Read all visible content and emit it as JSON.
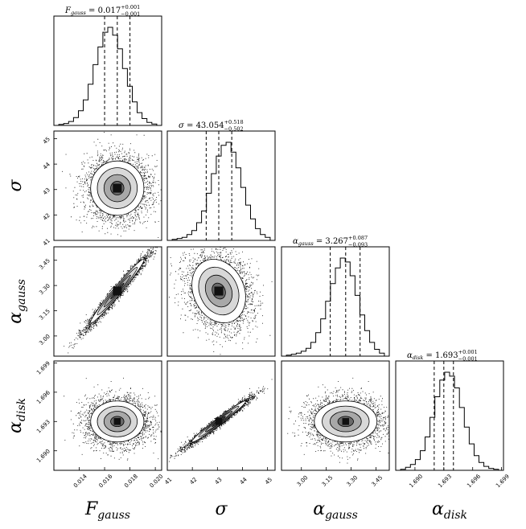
{
  "chart_data": {
    "type": "corner",
    "parameters": [
      {
        "key": "F",
        "symbol": "F",
        "subscript": "gauss",
        "median": 0.017,
        "plus": 0.001,
        "minus": 0.001,
        "median_text": "0.017",
        "plus_text": "+0.001",
        "minus_text": "−0.001",
        "range": [
          0.012,
          0.0205
        ],
        "ticks": [
          0.014,
          0.016,
          0.018,
          0.02
        ],
        "tick_labels": [
          "0.014",
          "0.016",
          "0.018",
          "0.020"
        ],
        "hist": [
          1,
          2,
          4,
          8,
          15,
          26,
          42,
          62,
          80,
          95,
          100,
          92,
          78,
          58,
          40,
          24,
          13,
          7,
          3,
          1.5
        ]
      },
      {
        "key": "S",
        "symbol": "σ",
        "subscript": "",
        "median": 43.054,
        "plus": 0.518,
        "minus": 0.502,
        "median_text": "43.054",
        "plus_text": "+0.518",
        "minus_text": "−0.502",
        "range": [
          41.0,
          45.3
        ],
        "ticks": [
          41,
          42,
          43,
          44,
          45
        ],
        "tick_labels": [
          "41",
          "42",
          "43",
          "44",
          "45"
        ],
        "hist": [
          1,
          2,
          3,
          6,
          10,
          18,
          30,
          48,
          68,
          86,
          97,
          100,
          90,
          74,
          54,
          36,
          22,
          12,
          6,
          3
        ]
      },
      {
        "key": "G",
        "symbol": "α",
        "subscript": "gauss",
        "median": 3.267,
        "plus": 0.087,
        "minus": 0.093,
        "median_text": "3.267",
        "plus_text": "+0.087",
        "minus_text": "−0.093",
        "range": [
          2.88,
          3.53
        ],
        "ticks": [
          3.0,
          3.15,
          3.3,
          3.45
        ],
        "tick_labels": [
          "3.00",
          "3.15",
          "3.30",
          "3.45"
        ],
        "hist": [
          1,
          2,
          3,
          5,
          8,
          14,
          24,
          38,
          56,
          74,
          90,
          100,
          96,
          82,
          62,
          42,
          26,
          14,
          7,
          3
        ]
      },
      {
        "key": "D",
        "symbol": "α",
        "subscript": "disk",
        "median": 1.693,
        "plus": 0.001,
        "minus": 0.001,
        "median_text": "1.693",
        "plus_text": "+0.001",
        "minus_text": "−0.001",
        "range": [
          1.688,
          1.6992
        ],
        "ticks": [
          1.69,
          1.693,
          1.696,
          1.699
        ],
        "tick_labels": [
          "1.690",
          "1.693",
          "1.696",
          "1.699"
        ],
        "hist": [
          1,
          3,
          6,
          11,
          20,
          34,
          54,
          75,
          92,
          100,
          96,
          84,
          64,
          44,
          27,
          15,
          8,
          4,
          2,
          1
        ]
      }
    ],
    "title_sep": "=",
    "correlations": {
      "SF": 0.0,
      "GF": 0.98,
      "GS": -0.2,
      "DF": 0.0,
      "DS": 0.98,
      "DG": 0.0
    },
    "quantile_lines": "16th, 50th, 84th percentiles (dashed)",
    "contour_levels": [
      0.5,
      1.0,
      1.5,
      2.0
    ]
  }
}
